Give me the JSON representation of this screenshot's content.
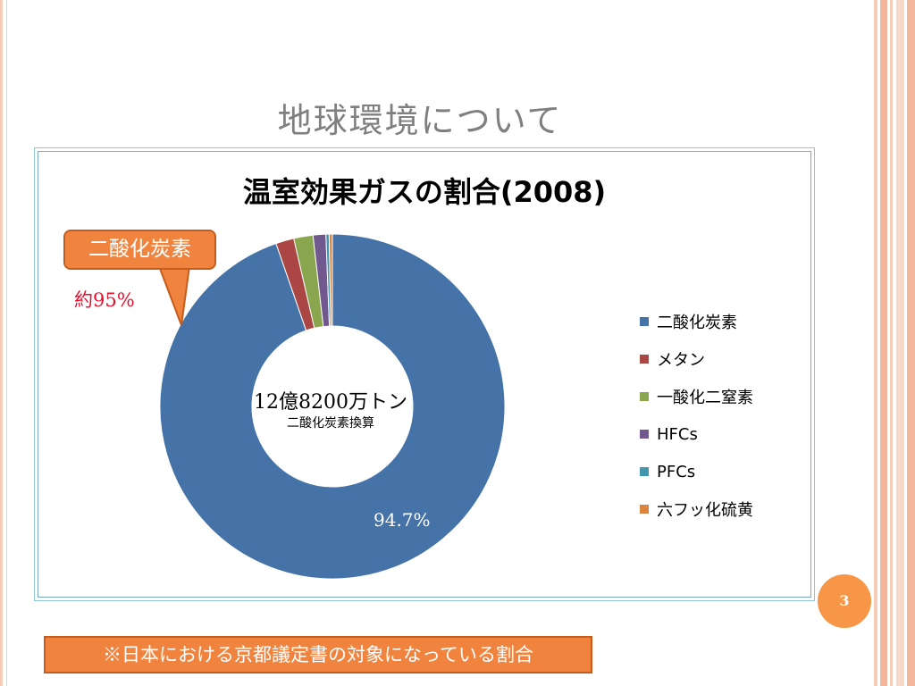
{
  "slide": {
    "title": "地球環境について",
    "page_number": "3",
    "footnote": "※日本における京都議定書の対象になっている割合"
  },
  "callout": {
    "label": "二酸化炭素",
    "approx": "約95%"
  },
  "center": {
    "total": "12億8200万トン",
    "unit_note": "二酸化炭素換算"
  },
  "colors": {
    "accent": "#f0843f",
    "page_badge": "#f79646",
    "approx_text": "#e8112d"
  },
  "chart_data": {
    "type": "pie",
    "variant": "donut",
    "title": "温室効果ガスの割合(2008)",
    "categories": [
      "二酸化炭素",
      "メタン",
      "一酸化二窒素",
      "HFCs",
      "PFCs",
      "六フッ化硫黄"
    ],
    "values": [
      94.7,
      1.7,
      1.8,
      1.2,
      0.3,
      0.3
    ],
    "colors": [
      "#4572a7",
      "#aa4643",
      "#89a54e",
      "#71588f",
      "#4198af",
      "#db843d"
    ],
    "data_labels": [
      "94.7%",
      "",
      "",
      "",
      "",
      ""
    ],
    "legend_position": "right"
  }
}
